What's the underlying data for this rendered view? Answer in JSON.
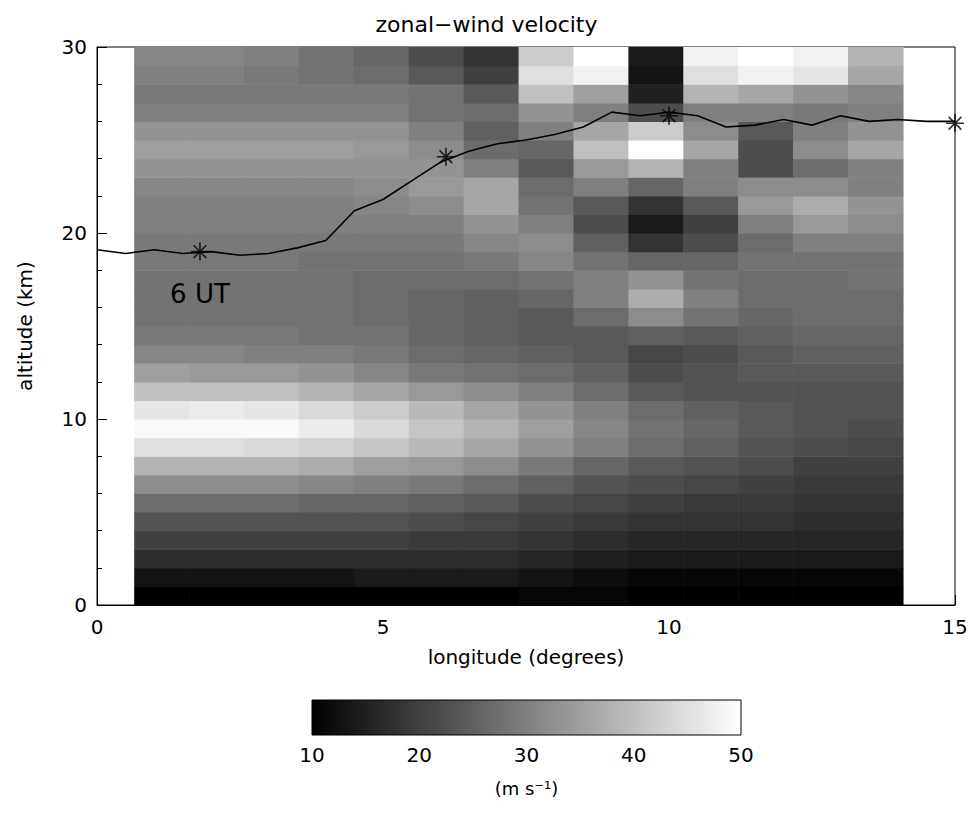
{
  "chart_data": {
    "type": "heatmap",
    "title": "zonal−wind velocity",
    "x_label": "longitude (degrees)",
    "y_label": "altitude (km)",
    "xlim": [
      0,
      15
    ],
    "xticks": [
      0,
      5,
      10,
      15
    ],
    "ylim": [
      0,
      30
    ],
    "yticks": [
      0,
      10,
      20,
      30
    ],
    "x": [
      1.13,
      2.09,
      3.05,
      4.01,
      4.97,
      5.93,
      6.89,
      7.85,
      8.81,
      9.77,
      10.73,
      11.69,
      12.65,
      13.61
    ],
    "y": [
      0.5,
      1.5,
      2.5,
      3.5,
      4.5,
      5.5,
      6.5,
      7.5,
      8.5,
      9.5,
      10.5,
      11.5,
      12.5,
      13.5,
      14.5,
      15.5,
      16.5,
      17.5,
      18.5,
      19.5,
      20.5,
      21.5,
      22.5,
      23.5,
      24.5,
      25.5,
      26.5,
      27.5,
      28.5,
      29.5
    ],
    "cells": [
      [
        10,
        10,
        10,
        10,
        10,
        10,
        10,
        11,
        11,
        10,
        10,
        10,
        10,
        10
      ],
      [
        13,
        13,
        13,
        13,
        14,
        14,
        14,
        13,
        12,
        11,
        11,
        11,
        11,
        11
      ],
      [
        17,
        17,
        17,
        17,
        17,
        17,
        17,
        16,
        15,
        14,
        14,
        14,
        14,
        14
      ],
      [
        20,
        20,
        20,
        20,
        20,
        19,
        19,
        18,
        17,
        16,
        16,
        16,
        16,
        16
      ],
      [
        23,
        23,
        23,
        23,
        23,
        22,
        21,
        20,
        19,
        18,
        18,
        18,
        17,
        17
      ],
      [
        27,
        27,
        27,
        26,
        26,
        25,
        24,
        22,
        21,
        20,
        19,
        19,
        18,
        18
      ],
      [
        32,
        32,
        32,
        31,
        30,
        29,
        27,
        25,
        23,
        22,
        21,
        20,
        19,
        19
      ],
      [
        38,
        38,
        38,
        37,
        35,
        34,
        32,
        29,
        26,
        24,
        23,
        22,
        20,
        20
      ],
      [
        45,
        45,
        44,
        43,
        41,
        39,
        36,
        33,
        30,
        27,
        25,
        23,
        22,
        21
      ],
      [
        49,
        49,
        49,
        47,
        44,
        41,
        38,
        35,
        31,
        28,
        26,
        24,
        23,
        22
      ],
      [
        46,
        47,
        46,
        44,
        42,
        39,
        36,
        33,
        30,
        27,
        25,
        24,
        23,
        23
      ],
      [
        40,
        40,
        40,
        38,
        36,
        34,
        32,
        30,
        27,
        24,
        23,
        23,
        23,
        23
      ],
      [
        35,
        34,
        34,
        33,
        31,
        29,
        28,
        27,
        25,
        22,
        23,
        24,
        24,
        24
      ],
      [
        31,
        31,
        30,
        30,
        29,
        27,
        26,
        25,
        24,
        21,
        22,
        24,
        25,
        25
      ],
      [
        29,
        29,
        29,
        28,
        28,
        26,
        25,
        24,
        24,
        25,
        24,
        25,
        26,
        26
      ],
      [
        28,
        28,
        28,
        28,
        27,
        26,
        25,
        24,
        27,
        32,
        28,
        26,
        27,
        27
      ],
      [
        28,
        28,
        28,
        28,
        27,
        26,
        25,
        26,
        30,
        37,
        30,
        27,
        27,
        27
      ],
      [
        28,
        28,
        28,
        28,
        27,
        27,
        27,
        28,
        30,
        33,
        28,
        27,
        27,
        28
      ],
      [
        29,
        29,
        29,
        28,
        28,
        28,
        29,
        31,
        28,
        26,
        26,
        28,
        28,
        28
      ],
      [
        29,
        29,
        29,
        29,
        29,
        29,
        31,
        32,
        25,
        18,
        22,
        27,
        30,
        30
      ],
      [
        30,
        30,
        30,
        30,
        30,
        30,
        33,
        30,
        22,
        14,
        20,
        30,
        34,
        32
      ],
      [
        30,
        30,
        30,
        30,
        31,
        32,
        36,
        28,
        24,
        18,
        24,
        34,
        37,
        33
      ],
      [
        31,
        31,
        31,
        31,
        32,
        34,
        36,
        27,
        30,
        26,
        30,
        32,
        32,
        30
      ],
      [
        33,
        33,
        33,
        33,
        33,
        33,
        30,
        24,
        34,
        38,
        30,
        22,
        27,
        30
      ],
      [
        35,
        35,
        35,
        35,
        34,
        32,
        27,
        26,
        40,
        50,
        36,
        22,
        32,
        36
      ],
      [
        33,
        33,
        33,
        33,
        33,
        30,
        25,
        30,
        36,
        42,
        32,
        24,
        30,
        33
      ],
      [
        30,
        30,
        30,
        30,
        30,
        28,
        27,
        33,
        30,
        22,
        30,
        30,
        29,
        30
      ],
      [
        29,
        29,
        29,
        29,
        29,
        28,
        24,
        40,
        35,
        15,
        38,
        36,
        33,
        31
      ],
      [
        30,
        30,
        29,
        28,
        27,
        24,
        20,
        45,
        48,
        13,
        45,
        48,
        46,
        36
      ],
      [
        31,
        31,
        30,
        28,
        26,
        22,
        18,
        42,
        50,
        14,
        48,
        50,
        48,
        38
      ]
    ],
    "colorbar": {
      "range": [
        10,
        50
      ],
      "ticks": [
        10,
        20,
        30,
        40,
        50
      ],
      "label": "(m s⁻¹)"
    },
    "line": {
      "color": "#000000",
      "x": [
        0,
        0.5,
        1,
        1.5,
        2,
        2.5,
        3,
        3.5,
        4,
        4.5,
        5,
        5.5,
        6,
        6.5,
        7,
        7.5,
        8,
        8.5,
        9,
        9.5,
        10,
        10.5,
        11,
        11.5,
        12,
        12.5,
        13,
        13.5,
        14,
        14.5,
        15
      ],
      "values": [
        19.1,
        18.9,
        19.1,
        18.9,
        19.0,
        18.8,
        18.9,
        19.2,
        19.6,
        21.2,
        21.8,
        22.8,
        23.8,
        24.4,
        24.8,
        25.0,
        25.3,
        25.7,
        26.5,
        26.3,
        26.5,
        26.3,
        25.7,
        25.8,
        26.1,
        25.8,
        26.3,
        26.0,
        26.1,
        26.0,
        26.0
      ]
    },
    "points": {
      "marker": "asterisk",
      "color": "#000000",
      "x": [
        1.8,
        6.1,
        10.0,
        15.0
      ],
      "values": [
        19.0,
        24.1,
        26.3,
        25.9
      ]
    },
    "annotations": [
      {
        "text": "6 UT",
        "x": 1.8,
        "y": 16.7
      }
    ]
  }
}
